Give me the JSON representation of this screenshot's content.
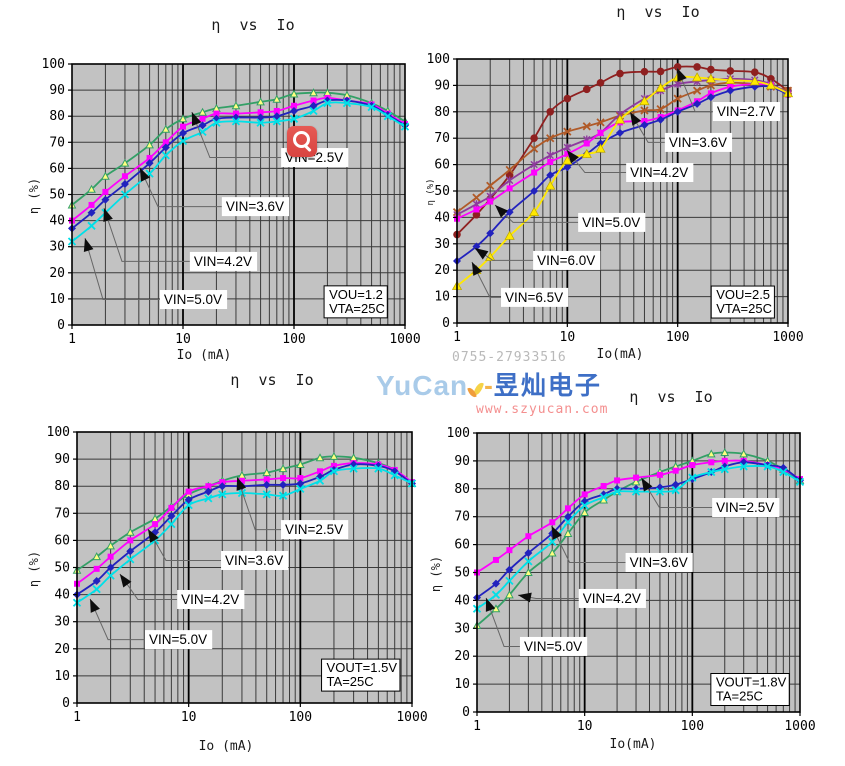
{
  "watermark": {
    "brand": "YuCan",
    "dash": "-",
    "cjk": "昱灿电子",
    "url": "www.szyucan.com",
    "phone": "0755-27933516",
    "brand_color": "#a9cbe9",
    "cjk_color": "#3e6fc6",
    "url_color": "#f48f8f",
    "phone_color": "#b9b9b9"
  },
  "overlay": {
    "zoom_icon_color": "#dd4945"
  },
  "style": {
    "plot_bg": "#c2c2c2",
    "grid_color": "#3a3a3a",
    "major_grid_color": "#000000",
    "leader_color": "#666666",
    "arrow_color": "#0d0d0d",
    "label_bg": "#ffffff"
  },
  "chart_data": [
    {
      "id": "top-left",
      "type": "line",
      "title": "η vs Io",
      "xlabel": "Io (mA)",
      "ylabel": "η (%)",
      "x_scale": "log",
      "xlim": [
        1,
        1000
      ],
      "ylim": [
        0,
        100
      ],
      "ytick_step": 10,
      "xticks": [
        1,
        10,
        100,
        1000
      ],
      "grid": true,
      "conditions": {
        "lines": [
          "VOU=1.2",
          "VTA=25C"
        ],
        "fx": 0.757,
        "fy": 0.85
      },
      "x": [
        1,
        1.5,
        2,
        3,
        5,
        7,
        10,
        15,
        20,
        30,
        50,
        70,
        100,
        150,
        200,
        300,
        500,
        700,
        1000
      ],
      "series": [
        {
          "name": "VIN=2.5V",
          "color": "#33a066",
          "marker": "triangle-open",
          "marker_fill": "#ffff80",
          "y": [
            46,
            52,
            57,
            62,
            69,
            75,
            79,
            81.5,
            83,
            84,
            85.5,
            86.5,
            88.5,
            89,
            89,
            88,
            85,
            82,
            78
          ]
        },
        {
          "name": "VIN=3.6V",
          "color": "#ff00ff",
          "marker": "square",
          "marker_fill": "#ff00ff",
          "y": [
            40,
            46,
            51,
            57,
            64,
            70,
            76,
            79,
            81,
            81,
            81.5,
            82,
            84,
            86,
            87,
            86,
            84.5,
            81,
            77
          ]
        },
        {
          "name": "VIN=4.2V",
          "color": "#2222be",
          "marker": "diamond",
          "marker_fill": "#2222be",
          "y": [
            37,
            43,
            48,
            54,
            62,
            68,
            73.5,
            76.5,
            79,
            79.5,
            79.5,
            80,
            82,
            84,
            86,
            86,
            84,
            80.5,
            76.5
          ]
        },
        {
          "name": "VIN=5.0V",
          "color": "#00e0e8",
          "marker": "x",
          "marker_fill": "#00e0e8",
          "y": [
            32,
            38,
            43,
            50,
            58,
            65,
            70.5,
            74,
            77.5,
            78,
            77.5,
            78,
            79,
            82,
            85,
            85,
            83.5,
            80,
            76
          ]
        }
      ],
      "annotations": [
        {
          "text": "VIN=2.5V",
          "box_fx": 0.628,
          "box_fy": 0.322,
          "tip_fx": 0.36,
          "tip_fy": 0.184
        },
        {
          "text": "VIN=3.6V",
          "box_fx": 0.45,
          "box_fy": 0.51,
          "tip_fx": 0.204,
          "tip_fy": 0.398
        },
        {
          "text": "VIN=4.2V",
          "box_fx": 0.354,
          "box_fy": 0.72,
          "tip_fx": 0.096,
          "tip_fy": 0.552
        },
        {
          "text": "VIN=5.0V",
          "box_fx": 0.264,
          "box_fy": 0.866,
          "tip_fx": 0.039,
          "tip_fy": 0.667
        }
      ]
    },
    {
      "id": "top-right",
      "type": "line",
      "title": "η vs Io",
      "xlabel": "Io(mA)",
      "ylabel": "η (%)",
      "x_scale": "log",
      "xlim": [
        1,
        1000
      ],
      "ylim": [
        0,
        100
      ],
      "ytick_step": 10,
      "xticks": [
        1,
        10,
        100,
        1000
      ],
      "grid": true,
      "conditions": {
        "lines": [
          "VOU=2.5",
          "VTA=25C"
        ],
        "fx": 0.768,
        "fy": 0.86
      },
      "x": [
        1,
        1.5,
        2,
        3,
        5,
        7,
        10,
        15,
        20,
        30,
        50,
        70,
        100,
        150,
        200,
        300,
        500,
        700,
        1000
      ],
      "series": [
        {
          "name": "VIN=2.7V",
          "color": "#8f2020",
          "marker": "circle",
          "marker_fill": "#8f2020",
          "y": [
            33.5,
            41,
            47,
            56,
            70,
            80,
            85,
            88.5,
            91,
            94.5,
            95.2,
            95.3,
            97,
            97,
            96,
            95.5,
            95,
            92.5,
            88
          ]
        },
        {
          "name": "VIN=3.6V",
          "color": "#b05a28",
          "marker": "x",
          "marker_fill": "#b05a28",
          "y": [
            42,
            47.5,
            52,
            58,
            66,
            70,
            72.5,
            74.5,
            76,
            78.5,
            80.5,
            81,
            85,
            88,
            90,
            91,
            90.5,
            89.5,
            88
          ]
        },
        {
          "name": "VIN=4.2V",
          "color": "#8e3a9e",
          "marker": "asterisk",
          "marker_fill": "#8e3a9e",
          "y": [
            41,
            45,
            48,
            54,
            60,
            63.5,
            66.5,
            69.5,
            72,
            79,
            85,
            88,
            90.5,
            91.5,
            92,
            92.5,
            92,
            90.5,
            87
          ]
        },
        {
          "name": "VIN=5.0V",
          "color": "#ff00ff",
          "marker": "square",
          "marker_fill": "#ff00ff",
          "y": [
            39.5,
            43,
            46,
            51,
            57,
            61,
            64,
            68,
            72,
            76,
            76.5,
            78,
            80.5,
            84,
            87,
            89.5,
            90.5,
            90,
            86.5
          ]
        },
        {
          "name": "VIN=6.0V",
          "color": "#2222be",
          "marker": "diamond",
          "marker_fill": "#2222be",
          "y": [
            23.5,
            29,
            34,
            42,
            50,
            56,
            59,
            64,
            68,
            72,
            75,
            77,
            80,
            83,
            85.5,
            88,
            89.5,
            89.5,
            86.5
          ]
        },
        {
          "name": "VIN=6.5V",
          "color": "#ffe800",
          "marker": "triangle",
          "marker_fill": "#ffe800",
          "y": [
            14,
            20,
            25,
            33,
            42,
            52,
            61.5,
            64,
            66,
            77,
            84,
            89,
            93,
            93,
            92.5,
            92,
            91.5,
            90,
            87
          ]
        }
      ],
      "annotations": [
        {
          "text": "VIN=2.7V",
          "box_fx": 0.773,
          "box_fy": 0.163,
          "tip_fx": 0.665,
          "tip_fy": 0.034
        },
        {
          "text": "VIN=3.6V",
          "box_fx": 0.628,
          "box_fy": 0.28,
          "tip_fx": 0.523,
          "tip_fy": 0.201
        },
        {
          "text": "VIN=4.2V",
          "box_fx": 0.511,
          "box_fy": 0.394,
          "tip_fx": 0.332,
          "tip_fy": 0.345
        },
        {
          "text": "VIN=5.0V",
          "box_fx": 0.366,
          "box_fy": 0.583,
          "tip_fx": 0.115,
          "tip_fy": 0.553
        },
        {
          "text": "VIN=6.0V",
          "box_fx": 0.23,
          "box_fy": 0.727,
          "tip_fx": 0.054,
          "tip_fy": 0.716
        },
        {
          "text": "VIN=6.5V",
          "box_fx": 0.133,
          "box_fy": 0.867,
          "tip_fx": 0.045,
          "tip_fy": 0.769
        }
      ]
    },
    {
      "id": "bottom-left",
      "type": "line",
      "title": "η vs Io",
      "xlabel": "Io (mA)",
      "ylabel": "η (%)",
      "x_scale": "log",
      "xlim": [
        1,
        1000
      ],
      "ylim": [
        0,
        100
      ],
      "ytick_step": 10,
      "xticks": [
        1,
        10,
        100,
        1000
      ],
      "grid": true,
      "conditions": {
        "lines": [
          "VOUT=1.5V",
          "TA=25C"
        ],
        "fx": 0.73,
        "fy": 0.838
      },
      "x": [
        1,
        1.5,
        2,
        3,
        5,
        7,
        10,
        15,
        20,
        30,
        50,
        70,
        100,
        150,
        200,
        300,
        500,
        700,
        1000
      ],
      "series": [
        {
          "name": "VIN=2.5V",
          "color": "#33a066",
          "marker": "triangle-open",
          "marker_fill": "#ffff80",
          "y": [
            49,
            54,
            58,
            63,
            68,
            72.5,
            77,
            80,
            82,
            84,
            85,
            86.5,
            88,
            90.5,
            91,
            90.5,
            88.5,
            86,
            81
          ]
        },
        {
          "name": "VIN=3.6V",
          "color": "#ff00ff",
          "marker": "square",
          "marker_fill": "#ff00ff",
          "y": [
            44,
            49.5,
            54,
            60,
            66,
            72,
            78,
            80,
            81.5,
            82,
            82.5,
            83,
            83,
            85.5,
            87.5,
            88.5,
            88,
            86,
            81.5
          ]
        },
        {
          "name": "VIN=4.2V",
          "color": "#2222be",
          "marker": "diamond",
          "marker_fill": "#2222be",
          "y": [
            40,
            45,
            50,
            56,
            63,
            69,
            75,
            78,
            80,
            80,
            80.5,
            80.5,
            81,
            83.5,
            86,
            88,
            87.5,
            85.5,
            81
          ]
        },
        {
          "name": "VIN=5.0V",
          "color": "#00e0e8",
          "marker": "x",
          "marker_fill": "#00e0e8",
          "y": [
            37,
            42,
            47,
            53,
            60,
            66,
            73,
            75.5,
            77,
            77.5,
            77,
            76.5,
            79,
            82,
            85.5,
            86.5,
            86.5,
            84,
            81
          ]
        }
      ],
      "annotations": [
        {
          "text": "VIN=2.5V",
          "box_fx": 0.609,
          "box_fy": 0.325,
          "tip_fx": 0.478,
          "tip_fy": 0.166
        },
        {
          "text": "VIN=3.6V",
          "box_fx": 0.43,
          "box_fy": 0.439,
          "tip_fx": 0.212,
          "tip_fy": 0.358
        },
        {
          "text": "VIN=4.2V",
          "box_fx": 0.299,
          "box_fy": 0.583,
          "tip_fx": 0.128,
          "tip_fy": 0.524
        },
        {
          "text": "VIN=5.0V",
          "box_fx": 0.203,
          "box_fy": 0.731,
          "tip_fx": 0.039,
          "tip_fy": 0.616
        }
      ]
    },
    {
      "id": "bottom-right",
      "type": "line",
      "title": "η vs Io",
      "xlabel": "Io(mA)",
      "ylabel": "η (%)",
      "x_scale": "log",
      "xlim": [
        1,
        1000
      ],
      "ylim": [
        0,
        100
      ],
      "ytick_step": 10,
      "xticks": [
        1,
        10,
        100,
        1000
      ],
      "grid": true,
      "conditions": {
        "lines": [
          "VOUT=1.8V",
          "TA=25C"
        ],
        "fx": 0.724,
        "fy": 0.862
      },
      "x": [
        1,
        1.5,
        2,
        3,
        5,
        7,
        10,
        15,
        20,
        30,
        50,
        70,
        100,
        150,
        200,
        300,
        500,
        700,
        1000
      ],
      "series": [
        {
          "name": "VIN=2.5V",
          "color": "#33a066",
          "marker": "triangle-open",
          "marker_fill": "#ffff80",
          "y": [
            31,
            37,
            42,
            50,
            57,
            64,
            71.5,
            76,
            79,
            82.5,
            86,
            88,
            90,
            92.5,
            93,
            92.5,
            90,
            87,
            83
          ]
        },
        {
          "name": "VIN=3.6V",
          "color": "#ff00ff",
          "marker": "square",
          "marker_fill": "#ff00ff",
          "y": [
            50,
            54.5,
            58,
            63,
            68,
            73,
            78,
            81,
            83,
            84,
            85,
            86.5,
            88.5,
            89.5,
            90,
            90,
            88.5,
            87,
            83.5
          ]
        },
        {
          "name": "VIN=4.2V",
          "color": "#2222be",
          "marker": "diamond",
          "marker_fill": "#2222be",
          "y": [
            41,
            46,
            51,
            57,
            64,
            70,
            75.5,
            78,
            80,
            80,
            80.5,
            81.5,
            83.5,
            86,
            88,
            89.5,
            88.5,
            87.5,
            83
          ]
        },
        {
          "name": "VIN=5.0V",
          "color": "#00e0e8",
          "marker": "x",
          "marker_fill": "#00e0e8",
          "y": [
            37,
            42,
            47,
            54,
            61,
            68,
            74,
            77,
            79,
            79,
            79,
            79.5,
            84,
            86,
            87,
            88,
            88,
            86,
            82.5
          ]
        }
      ],
      "annotations": [
        {
          "text": "VIN=2.5V",
          "box_fx": 0.728,
          "box_fy": 0.233,
          "tip_fx": 0.509,
          "tip_fy": 0.161
        },
        {
          "text": "VIN=3.6V",
          "box_fx": 0.46,
          "box_fy": 0.43,
          "tip_fx": 0.231,
          "tip_fy": 0.333
        },
        {
          "text": "VIN=4.2V",
          "box_fx": 0.315,
          "box_fy": 0.559,
          "tip_fx": 0.127,
          "tip_fy": 0.581
        },
        {
          "text": "VIN=5.0V",
          "box_fx": 0.133,
          "box_fy": 0.731,
          "tip_fx": 0.028,
          "tip_fy": 0.591
        }
      ]
    }
  ]
}
